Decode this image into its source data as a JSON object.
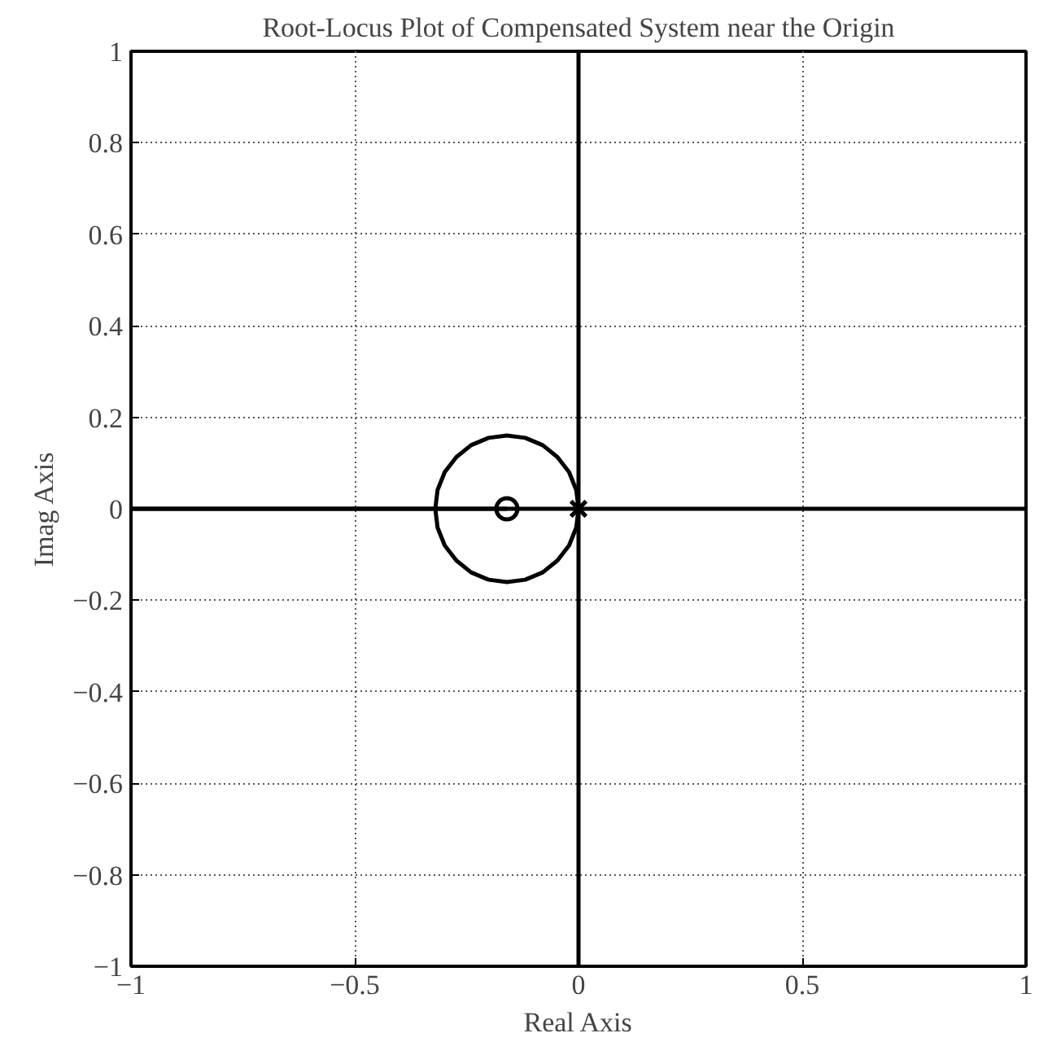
{
  "chart_data": {
    "type": "line",
    "title": "Root-Locus Plot of Compensated System near the Origin",
    "xlabel": "Real Axis",
    "ylabel": "Imag Axis",
    "xlim": [
      -1,
      1
    ],
    "ylim": [
      -1,
      1
    ],
    "xticks": [
      {
        "value": -1,
        "label": "−1"
      },
      {
        "value": -0.5,
        "label": "−0.5"
      },
      0,
      0.5,
      1
    ],
    "yticks": [
      {
        "value": -1,
        "label": "−1"
      },
      {
        "value": -0.8,
        "label": "−0.8"
      },
      {
        "value": -0.6,
        "label": "−0.6"
      },
      {
        "value": -0.4,
        "label": "−0.4"
      },
      {
        "value": -0.2,
        "label": "−0.2"
      },
      0,
      0.2,
      0.4,
      0.6,
      0.8,
      1
    ],
    "grid": true,
    "series": [
      {
        "color": "#000000",
        "marker": "none",
        "x": [
          -1,
          1
        ],
        "values": [
          0,
          0
        ]
      },
      {
        "color": "#000000",
        "marker": "none",
        "x": [
          0,
          0
        ],
        "values": [
          -1,
          1
        ]
      },
      {
        "color": "#000000",
        "marker": "none",
        "x": [
          0,
          -0.005,
          -0.021,
          -0.047,
          -0.08,
          -0.119,
          -0.16,
          -0.201,
          -0.24,
          -0.273,
          -0.299,
          -0.315,
          -0.32,
          -0.16
        ],
        "values": [
          0,
          0.041,
          0.08,
          0.113,
          0.139,
          0.155,
          0.16,
          0.155,
          0.139,
          0.113,
          0.08,
          0.041,
          0,
          0
        ]
      },
      {
        "color": "#000000",
        "marker": "none",
        "x": [
          0,
          -0.005,
          -0.021,
          -0.047,
          -0.08,
          -0.119,
          -0.16,
          -0.201,
          -0.24,
          -0.273,
          -0.299,
          -0.315,
          -0.32,
          -1
        ],
        "values": [
          0,
          -0.041,
          -0.08,
          -0.113,
          -0.139,
          -0.155,
          -0.16,
          -0.155,
          -0.139,
          -0.113,
          -0.08,
          -0.041,
          0,
          0
        ]
      },
      {
        "type": "scatter",
        "color": "#000000",
        "marker": "circle",
        "x": [
          -0.16
        ],
        "values": [
          0
        ]
      },
      {
        "type": "scatter",
        "color": "#000000",
        "marker": "cross",
        "x": [
          0,
          0
        ],
        "values": [
          0,
          0
        ]
      }
    ]
  }
}
